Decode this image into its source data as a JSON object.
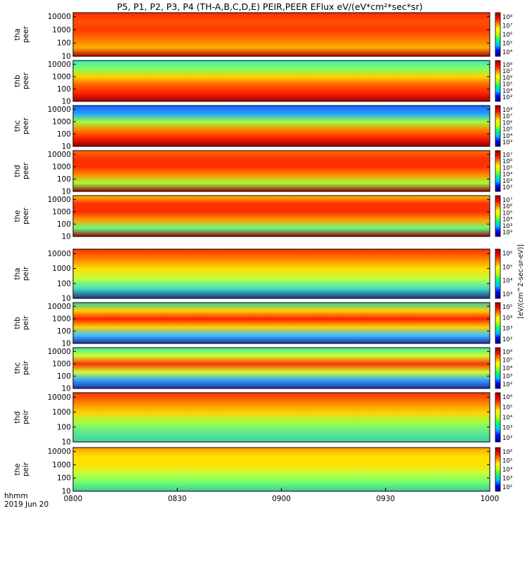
{
  "title": "P5, P1, P2, P3, P4 (TH-A,B,C,D,E) PEIR,PEER EFlux eV/(eV*cm²*sec*sr)",
  "colorbar_label": "[eV/(cm^2-sec-sr-eV)]",
  "colorbar_scale": [
    "#000080",
    "#0000ff",
    "#00c0ff",
    "#00ff80",
    "#c0ff00",
    "#ffff00",
    "#ff8000",
    "#ff0000",
    "#900000"
  ],
  "chart_data": [
    {
      "type": "heatmap",
      "probe": "tha",
      "species": "peer",
      "ylabel_top": "tha",
      "ylabel_bottom": "peer",
      "yticks": [
        "10000",
        "1000",
        "100",
        "10"
      ],
      "ylim": [
        10,
        20000
      ],
      "yscale": "log",
      "cbar_ticks": [
        "10⁸",
        "10⁷",
        "10⁶",
        "10⁵",
        "10⁴"
      ]
    },
    {
      "type": "heatmap",
      "probe": "thb",
      "species": "peer",
      "ylabel_top": "thb",
      "ylabel_bottom": "peer",
      "yticks": [
        "10000",
        "1000",
        "100",
        "10"
      ],
      "ylim": [
        10,
        20000
      ],
      "yscale": "log",
      "cbar_ticks": [
        "10⁸",
        "10⁷",
        "10⁶",
        "10⁵",
        "10⁴",
        "10³"
      ]
    },
    {
      "type": "heatmap",
      "probe": "thc",
      "species": "peer",
      "ylabel_top": "thc",
      "ylabel_bottom": "peer",
      "yticks": [
        "10000",
        "1000",
        "100",
        "10"
      ],
      "ylim": [
        10,
        20000
      ],
      "yscale": "log",
      "cbar_ticks": [
        "10⁸",
        "10⁷",
        "10⁶",
        "10⁵",
        "10⁴",
        "10³"
      ]
    },
    {
      "type": "heatmap",
      "probe": "thd",
      "species": "peer",
      "ylabel_top": "thd",
      "ylabel_bottom": "peer",
      "yticks": [
        "10000",
        "1000",
        "100",
        "10"
      ],
      "ylim": [
        10,
        20000
      ],
      "yscale": "log",
      "cbar_ticks": [
        "10⁷",
        "10⁶",
        "10⁵",
        "10⁴",
        "10³",
        "10²"
      ]
    },
    {
      "type": "heatmap",
      "probe": "the",
      "species": "peer",
      "ylabel_top": "the",
      "ylabel_bottom": "peer",
      "yticks": [
        "10000",
        "1000",
        "100",
        "10"
      ],
      "ylim": [
        10,
        20000
      ],
      "yscale": "log",
      "cbar_ticks": [
        "10⁷",
        "10⁶",
        "10⁵",
        "10⁴",
        "10³",
        "10²"
      ]
    },
    {
      "type": "heatmap",
      "probe": "tha",
      "species": "peir",
      "ylabel_top": "tha",
      "ylabel_bottom": "peir",
      "yticks": [
        "10000",
        "1000",
        "100",
        "10"
      ],
      "ylim": [
        10,
        20000
      ],
      "yscale": "log",
      "cbar_ticks": [
        "10⁶",
        "10⁵",
        "10⁴",
        "10³"
      ]
    },
    {
      "type": "heatmap",
      "probe": "thb",
      "species": "peir",
      "ylabel_top": "thb",
      "ylabel_bottom": "peir",
      "yticks": [
        "10000",
        "1000",
        "100",
        "10"
      ],
      "ylim": [
        10,
        20000
      ],
      "yscale": "log",
      "cbar_ticks": [
        "10⁵",
        "10⁴",
        "10³",
        "10²"
      ]
    },
    {
      "type": "heatmap",
      "probe": "thc",
      "species": "peir",
      "ylabel_top": "thc",
      "ylabel_bottom": "peir",
      "yticks": [
        "10000",
        "1000",
        "100",
        "10"
      ],
      "ylim": [
        10,
        20000
      ],
      "yscale": "log",
      "cbar_ticks": [
        "10⁶",
        "10⁵",
        "10⁴",
        "10³",
        "10²"
      ]
    },
    {
      "type": "heatmap",
      "probe": "thd",
      "species": "peir",
      "ylabel_top": "thd",
      "ylabel_bottom": "peir",
      "yticks": [
        "10000",
        "1000",
        "100",
        "10"
      ],
      "ylim": [
        10,
        20000
      ],
      "yscale": "log",
      "cbar_ticks": [
        "10⁶",
        "10⁵",
        "10⁴",
        "10³",
        "10²"
      ]
    },
    {
      "type": "heatmap",
      "probe": "the",
      "species": "peir",
      "ylabel_top": "the",
      "ylabel_bottom": "peir",
      "yticks": [
        "10000",
        "1000",
        "100",
        "10"
      ],
      "ylim": [
        10,
        20000
      ],
      "yscale": "log",
      "cbar_ticks": [
        "10⁶",
        "10⁵",
        "10⁴",
        "10³",
        "10²"
      ]
    }
  ],
  "xaxis": {
    "label_line1": "hhmm",
    "label_line2": "2019 Jun 20",
    "ticks": [
      "0800",
      "0830",
      "0900",
      "0930",
      "1000"
    ],
    "xlim": [
      "08:00",
      "10:00"
    ]
  }
}
